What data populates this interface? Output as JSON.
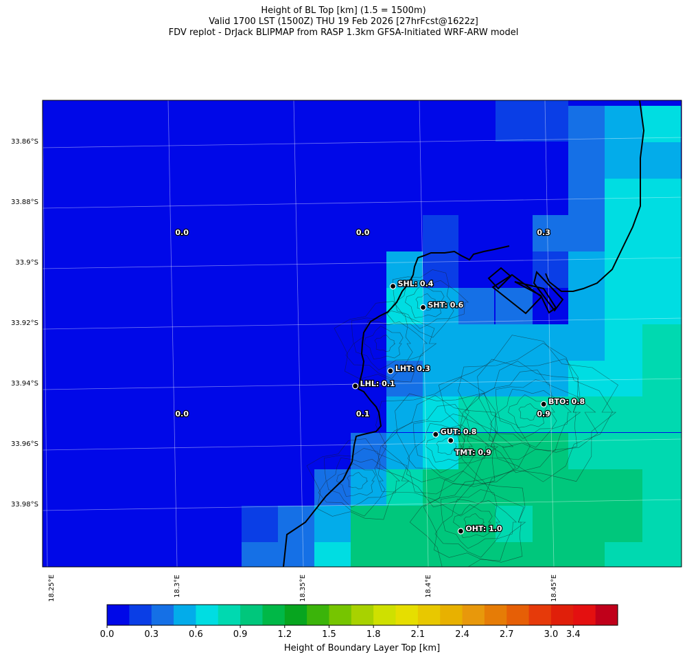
{
  "title_lines": [
    "Height of BL Top [km] (1.5 = 1500m)",
    "Valid 1700 LST (1500Z) THU 19 Feb 2026 [27hrFcst@1622z]",
    "FDV replot - DrJack BLIPMAP from RASP 1.3km GFSA-Initiated WRF-ARW model"
  ],
  "lat_labels": [
    "33.86°S",
    "33.88°S",
    "33.9°S",
    "33.92°S",
    "33.94°S",
    "33.96°S",
    "33.98°S"
  ],
  "lon_labels": [
    "18.25°E",
    "18.3°E",
    "18.35°E",
    "18.4°E",
    "18.45°E"
  ],
  "colorbar": {
    "label": "Height of Boundary Layer Top [km]",
    "ticks": [
      "0.0",
      "0.3",
      "0.6",
      "0.9",
      "1.2",
      "1.5",
      "1.8",
      "2.1",
      "2.4",
      "2.7",
      "3.0",
      "3.4"
    ],
    "colors": [
      "#0008e8",
      "#0a3ee6",
      "#1570e6",
      "#03acea",
      "#00dde2",
      "#00d9b0",
      "#00c77c",
      "#00b847",
      "#07a51f",
      "#3bb40a",
      "#76c500",
      "#a8d200",
      "#cfe000",
      "#e6de00",
      "#e8c800",
      "#e8b100",
      "#e8980b",
      "#e67c06",
      "#e65f06",
      "#e63a0a",
      "#e01f0a",
      "#e41010",
      "#c0001a"
    ]
  },
  "grid_values": [
    {
      "text": "0.0",
      "lat": -33.891,
      "lon": 18.303
    },
    {
      "text": "0.0",
      "lat": -33.891,
      "lon": 18.375
    },
    {
      "text": "0.3",
      "lat": -33.891,
      "lon": 18.447
    },
    {
      "text": "0.0",
      "lat": -33.951,
      "lon": 18.303
    },
    {
      "text": "0.1",
      "lat": -33.951,
      "lon": 18.375
    },
    {
      "text": "0.9",
      "lat": -33.951,
      "lon": 18.447
    }
  ],
  "stations": [
    {
      "code": "SHL",
      "value": "0.4",
      "label": "SHL: 0.4",
      "lat": -33.908,
      "lon": 18.387,
      "label_side": "right"
    },
    {
      "code": "SHT",
      "value": "0.6",
      "label": "SHT: 0.6",
      "lat": -33.915,
      "lon": 18.399,
      "label_side": "right"
    },
    {
      "code": "LHT",
      "value": "0.3",
      "label": "LHT: 0.3",
      "lat": -33.936,
      "lon": 18.386,
      "label_side": "right"
    },
    {
      "code": "LHL",
      "value": "0.1",
      "label": "LHL: 0.1",
      "lat": -33.941,
      "lon": 18.372,
      "label_side": "right"
    },
    {
      "code": "BTO",
      "value": "0.8",
      "label": "BTO: 0.8",
      "lat": -33.947,
      "lon": 18.447,
      "label_side": "right"
    },
    {
      "code": "GUT",
      "value": "0.8",
      "label": "GUT: 0.8",
      "lat": -33.957,
      "lon": 18.404,
      "label_side": "right"
    },
    {
      "code": "TMT",
      "value": "0.9",
      "label": "TMT: 0.9",
      "lat": -33.959,
      "lon": 18.41,
      "label_side": "below"
    },
    {
      "code": "OHT",
      "value": "1.0",
      "label": "OHT: 1.0",
      "lat": -33.989,
      "lon": 18.414,
      "label_side": "right"
    }
  ]
}
